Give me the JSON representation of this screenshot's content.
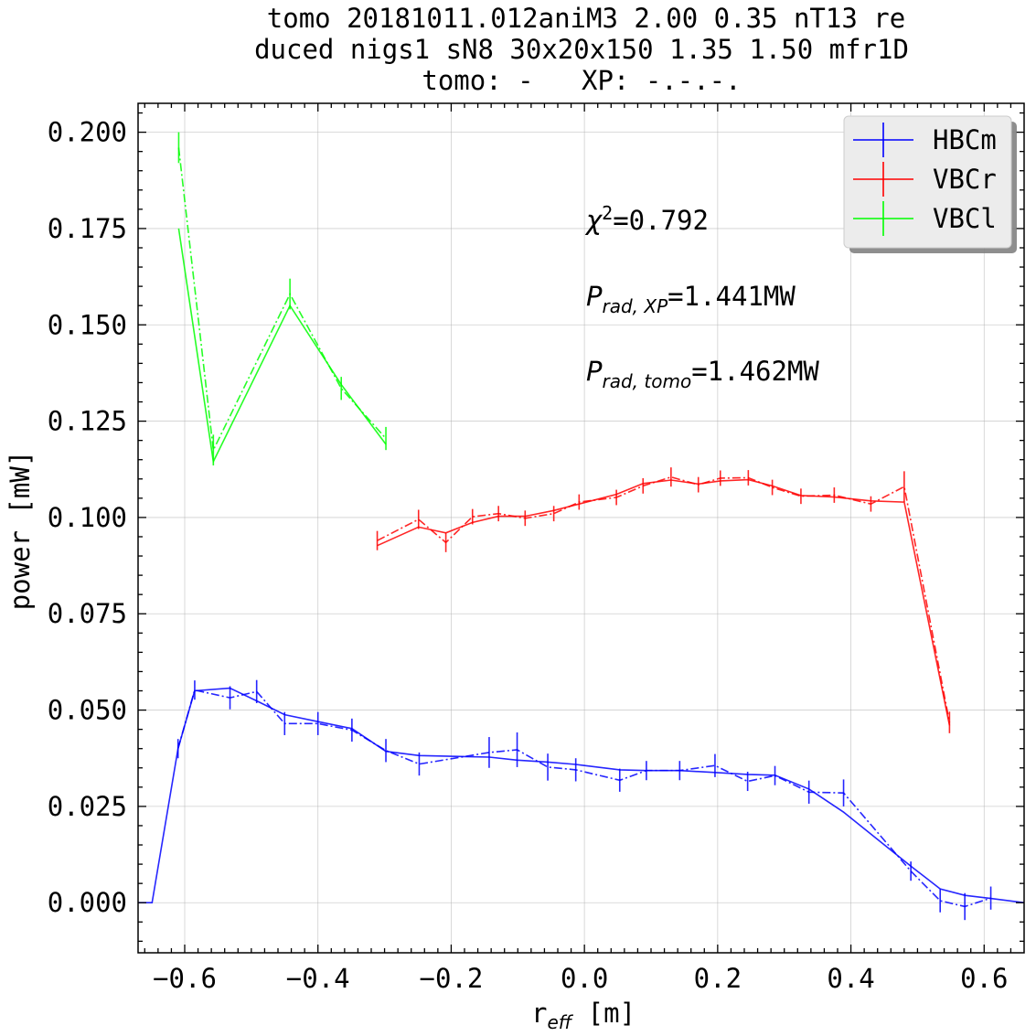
{
  "chart_data": {
    "type": "line",
    "title_lines": [
      "tomo 20181011.012aniM3 2.00 0.35 nT13 re",
      "duced nigs1 sN8 30x20x150 1.35 1.50 mfr1D",
      "tomo: -   XP: -.-.-."
    ],
    "xlabel_main": "r",
    "xlabel_sub": "eff",
    "xlabel_unit": " [m]",
    "ylabel": "power [mW]",
    "xlim": [
      -0.67,
      0.66
    ],
    "ylim": [
      -0.013,
      0.2075
    ],
    "xticks": [
      -0.6,
      -0.4,
      -0.2,
      0.0,
      0.2,
      0.4,
      0.6
    ],
    "xtick_labels": [
      "−0.6",
      "−0.4",
      "−0.2",
      "0.0",
      "0.2",
      "0.4",
      "0.6"
    ],
    "yticks": [
      0.0,
      0.025,
      0.05,
      0.075,
      0.1,
      0.125,
      0.15,
      0.175,
      0.2
    ],
    "ytick_labels": [
      "0.000",
      "0.025",
      "0.050",
      "0.075",
      "0.100",
      "0.125",
      "0.150",
      "0.175",
      "0.200"
    ],
    "grid": true,
    "legend_position": "top-right",
    "annotations": {
      "chi2_sym": "χ",
      "chi2_sup": "2",
      "chi2_val": "=0.792",
      "prad_xp_sym": "P",
      "prad_xp_sub": "rad, XP",
      "prad_xp_val": "=1.441MW",
      "prad_tomo_sym": "P",
      "prad_tomo_sub": "rad, tomo",
      "prad_tomo_val": "=1.462MW"
    },
    "series": [
      {
        "name": "HBCm",
        "color": "#0000ff",
        "tomo": {
          "x": [
            -0.67,
            -0.649,
            -0.61,
            -0.585,
            -0.532,
            -0.492,
            -0.45,
            -0.4,
            -0.349,
            -0.298,
            -0.248,
            -0.143,
            -0.101,
            -0.055,
            -0.013,
            0.0,
            0.053,
            0.093,
            0.143,
            0.196,
            0.245,
            0.286,
            0.337,
            0.389,
            0.49,
            0.534,
            0.571,
            0.61,
            0.66
          ],
          "y": [
            0.0,
            0.0,
            0.04,
            0.055,
            0.0557,
            0.0524,
            0.0488,
            0.047,
            0.0452,
            0.0393,
            0.0382,
            0.0378,
            0.037,
            0.0365,
            0.0359,
            0.0356,
            0.0345,
            0.0343,
            0.0343,
            0.0338,
            0.0333,
            0.0331,
            0.0295,
            0.0235,
            0.0095,
            0.0036,
            0.0019,
            0.0011,
            0.0
          ]
        },
        "xp": {
          "x": [
            -0.61,
            -0.585,
            -0.532,
            -0.492,
            -0.45,
            -0.4,
            -0.349,
            -0.298,
            -0.248,
            -0.143,
            -0.101,
            -0.055,
            -0.013,
            0.053,
            0.093,
            0.143,
            0.196,
            0.245,
            0.286,
            0.337,
            0.389,
            0.49,
            0.534,
            0.571,
            0.61
          ],
          "y": [
            0.04,
            0.0552,
            0.0532,
            0.0548,
            0.0465,
            0.0465,
            0.0448,
            0.0395,
            0.036,
            0.039,
            0.0397,
            0.0352,
            0.0345,
            0.0318,
            0.0343,
            0.0343,
            0.0356,
            0.0315,
            0.033,
            0.0287,
            0.0285,
            0.0082,
            0.0005,
            -0.001,
            0.0012
          ],
          "err": [
            0.0025,
            0.0025,
            0.003,
            0.003,
            0.003,
            0.003,
            0.003,
            0.003,
            0.003,
            0.004,
            0.0045,
            0.0035,
            0.003,
            0.003,
            0.0025,
            0.0025,
            0.003,
            0.0025,
            0.0025,
            0.003,
            0.0035,
            0.0025,
            0.003,
            0.0035,
            0.003
          ]
        }
      },
      {
        "name": "VBCr",
        "color": "#ff0000",
        "tomo": {
          "x": [
            -0.311,
            -0.249,
            -0.208,
            -0.168,
            -0.129,
            -0.089,
            -0.046,
            -0.008,
            0.048,
            0.088,
            0.13,
            0.171,
            0.204,
            0.246,
            0.282,
            0.325,
            0.375,
            0.43,
            0.48,
            0.548
          ],
          "y": [
            0.0927,
            0.0975,
            0.096,
            0.0987,
            0.1003,
            0.1003,
            0.1018,
            0.1035,
            0.106,
            0.1088,
            0.1097,
            0.1087,
            0.1095,
            0.1098,
            0.1082,
            0.1057,
            0.1053,
            0.1043,
            0.104,
            0.046
          ]
        },
        "xp": {
          "x": [
            -0.311,
            -0.249,
            -0.208,
            -0.168,
            -0.129,
            -0.089,
            -0.046,
            -0.008,
            0.048,
            0.088,
            0.13,
            0.171,
            0.204,
            0.246,
            0.282,
            0.325,
            0.375,
            0.43,
            0.48,
            0.548
          ],
          "y": [
            0.094,
            0.0995,
            0.0935,
            0.1002,
            0.101,
            0.0998,
            0.101,
            0.104,
            0.1052,
            0.1082,
            0.1105,
            0.1085,
            0.1102,
            0.1103,
            0.1078,
            0.1055,
            0.1058,
            0.1035,
            0.108,
            0.0468
          ]
        },
        "err": [
          0.0025,
          0.0025,
          0.0025,
          0.002,
          0.002,
          0.002,
          0.002,
          0.002,
          0.002,
          0.002,
          0.0025,
          0.002,
          0.002,
          0.002,
          0.002,
          0.002,
          0.002,
          0.002,
          0.004,
          0.0028
        ]
      },
      {
        "name": "VBCl",
        "color": "#00ff00",
        "tomo": {
          "x": [
            -0.609,
            -0.557,
            -0.442,
            -0.365,
            -0.298
          ],
          "y": [
            0.175,
            0.1145,
            0.155,
            0.1345,
            0.119
          ]
        },
        "xp": {
          "x": [
            -0.609,
            -0.557,
            -0.442,
            -0.365,
            -0.298
          ],
          "y": [
            0.196,
            0.1175,
            0.158,
            0.1335,
            0.1205
          ]
        },
        "err": [
          0.004,
          0.004,
          0.004,
          0.003,
          0.003
        ]
      }
    ]
  }
}
